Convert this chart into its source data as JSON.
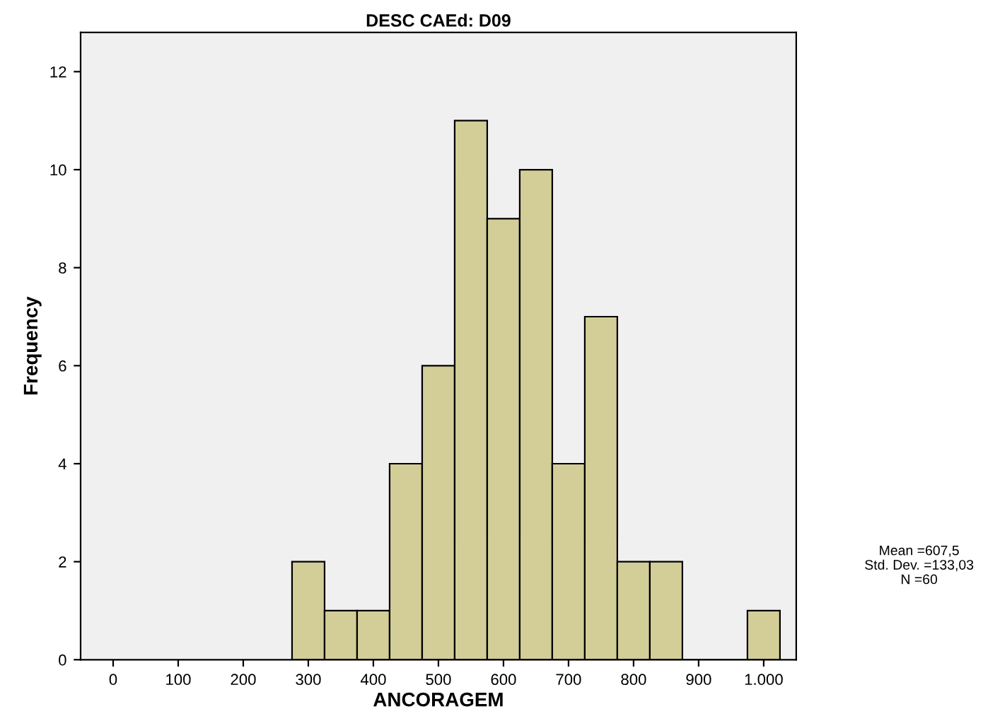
{
  "chart_data": {
    "type": "histogram",
    "title": "DESC CAEd: D09",
    "xlabel": "ANCORAGEM",
    "ylabel": "Frequency",
    "bins": [
      275,
      325,
      375,
      425,
      475,
      525,
      575,
      625,
      675,
      725,
      775,
      825,
      875,
      925,
      975,
      1025
    ],
    "values": [
      2,
      1,
      1,
      4,
      6,
      11,
      9,
      10,
      4,
      7,
      2,
      2,
      0,
      0,
      1
    ],
    "color": "#d3ce97",
    "xlim": [
      -50,
      1050
    ],
    "ylim": [
      0,
      12.8
    ],
    "xticks": [
      0,
      100,
      200,
      300,
      400,
      500,
      600,
      700,
      800,
      900,
      {
        "value": 1000,
        "label": "1.000"
      }
    ],
    "yticks": [
      0,
      2,
      4,
      6,
      8,
      10,
      12
    ],
    "grid": false,
    "annotations": [
      "Mean =607,5",
      "Std. Dev. =133,03",
      "N =60"
    ]
  }
}
